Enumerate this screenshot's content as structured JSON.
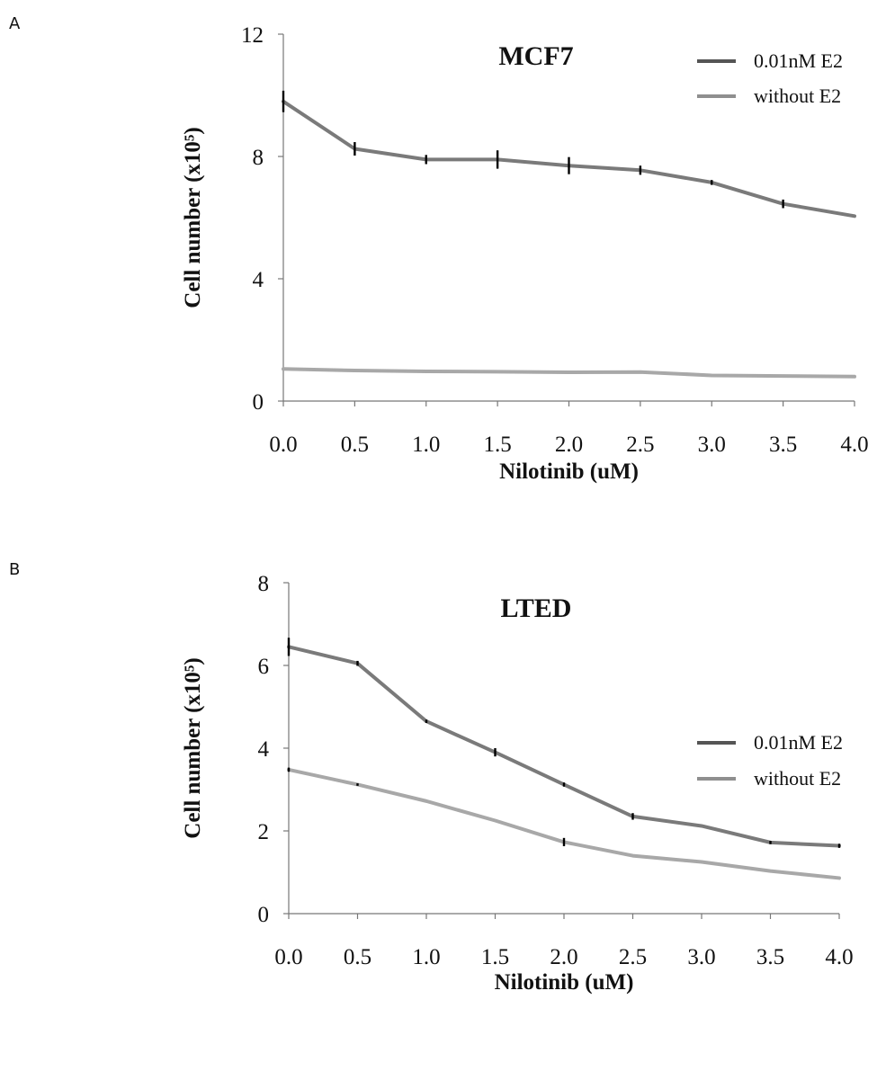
{
  "chart_data": [
    {
      "panel": "A",
      "type": "line",
      "title": "MCF7",
      "xlabel": "Nilotinib (uM)",
      "ylabel": "Cell number (x10⁵)",
      "x": [
        0.0,
        0.5,
        1.0,
        1.5,
        2.0,
        2.5,
        3.0,
        3.5,
        4.0
      ],
      "x_tick_labels": [
        "0.0",
        "0.5",
        "1.0",
        "1.5",
        "2.0",
        "2.5",
        "3.0",
        "3.5",
        "4.0"
      ],
      "xlim": [
        0,
        4
      ],
      "ylim": [
        0,
        12
      ],
      "y_ticks": [
        0,
        4,
        8,
        12
      ],
      "y_tick_labels": [
        "0",
        "4",
        "8",
        "12"
      ],
      "grid": false,
      "legend_position": "top-right",
      "series": [
        {
          "name": "0.01nM E2",
          "legend_color": "#555555",
          "color": "#7a7a7a",
          "values": [
            9.8,
            8.25,
            7.9,
            7.9,
            7.7,
            7.55,
            7.15,
            6.45,
            6.05
          ],
          "errors": [
            0.35,
            0.22,
            0.15,
            0.3,
            0.28,
            0.15,
            0.08,
            0.14,
            0.0
          ]
        },
        {
          "name": "without E2",
          "legend_color": "#8f8f8f",
          "color": "#a8a8a8",
          "values": [
            1.05,
            1.0,
            0.97,
            0.96,
            0.94,
            0.95,
            0.84,
            0.82,
            0.8
          ],
          "errors": [
            0,
            0,
            0,
            0,
            0,
            0,
            0,
            0,
            0
          ]
        }
      ]
    },
    {
      "panel": "B",
      "type": "line",
      "title": "LTED",
      "xlabel": "Nilotinib (uM)",
      "ylabel": "Cell number (x10⁵)",
      "x": [
        0.0,
        0.5,
        1.0,
        1.5,
        2.0,
        2.5,
        3.0,
        3.5,
        4.0
      ],
      "x_tick_labels": [
        "0.0",
        "0.5",
        "1.0",
        "1.5",
        "2.0",
        "2.5",
        "3.0",
        "3.5",
        "4.0"
      ],
      "xlim": [
        0,
        4
      ],
      "ylim": [
        0,
        8
      ],
      "y_ticks": [
        0,
        2,
        4,
        6,
        8
      ],
      "y_tick_labels": [
        "0",
        "2",
        "4",
        "6",
        "8"
      ],
      "grid": false,
      "legend_position": "right",
      "series": [
        {
          "name": "0.01nM E2",
          "legend_color": "#555555",
          "color": "#7a7a7a",
          "values": [
            6.45,
            6.05,
            4.65,
            3.9,
            3.12,
            2.35,
            2.12,
            1.72,
            1.64
          ],
          "errors": [
            0.22,
            0.06,
            0.04,
            0.1,
            0.05,
            0.08,
            0.0,
            0.04,
            0.05
          ]
        },
        {
          "name": "without E2",
          "legend_color": "#8f8f8f",
          "color": "#a8a8a8",
          "values": [
            3.48,
            3.12,
            2.72,
            2.25,
            1.73,
            1.4,
            1.25,
            1.03,
            0.86
          ],
          "errors": [
            0.05,
            0.03,
            0.0,
            0.0,
            0.1,
            0.0,
            0.0,
            0.0,
            0.0
          ]
        }
      ]
    }
  ]
}
